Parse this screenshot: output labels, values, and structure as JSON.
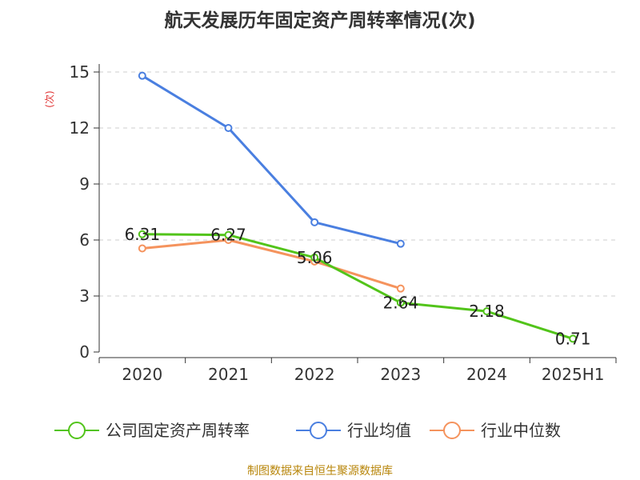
{
  "chart_data": {
    "type": "line",
    "title": "航天发展历年固定资产周转率情况(次)",
    "ylabel": "(次)",
    "categories": [
      "2020",
      "2021",
      "2022",
      "2023",
      "2024",
      "2025H1"
    ],
    "ylim": [
      0,
      15
    ],
    "yticks": [
      "0",
      "3",
      "6",
      "9",
      "12",
      "15"
    ],
    "grid": true,
    "legend_position": "bottom",
    "series": [
      {
        "name": "公司固定资产周转率",
        "color": "#52c41a",
        "values": [
          6.31,
          6.27,
          5.06,
          2.64,
          2.18,
          0.71
        ],
        "labels": [
          "6.31",
          "6.27",
          "5.06",
          "2.64",
          "2.18",
          "0.71"
        ]
      },
      {
        "name": "行业均值",
        "color": "#4a7fe0",
        "values": [
          14.8,
          12.0,
          6.95,
          5.8,
          null,
          null
        ]
      },
      {
        "name": "行业中位数",
        "color": "#f5935d",
        "values": [
          5.55,
          6.0,
          4.85,
          3.4,
          null,
          null
        ]
      }
    ],
    "source": "制图数据来自恒生聚源数据库"
  }
}
